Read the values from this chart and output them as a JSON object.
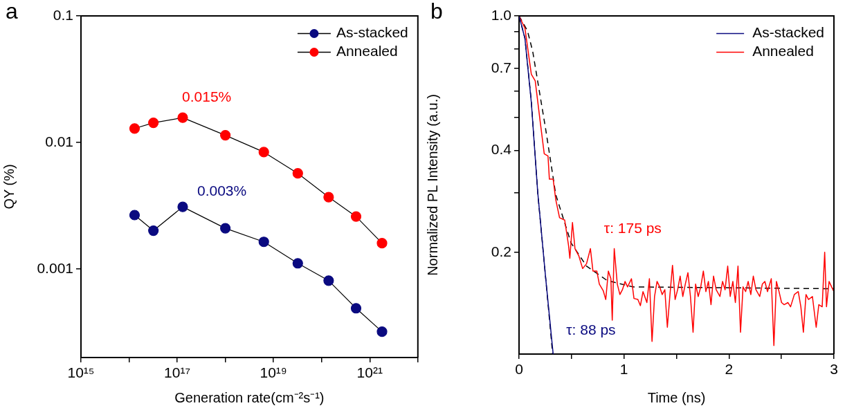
{
  "chart_data": [
    {
      "type": "line",
      "title": "a",
      "xlabel": "Generation rate(cm⁻²s⁻¹)",
      "ylabel": "QY (%)",
      "log": "xy",
      "marker": "circle",
      "legend": "top right",
      "xlim": [
        1000000000000000.0,
        1e+22
      ],
      "xticks": [
        {
          "value": 1000000000000000.0,
          "label": "10¹⁵"
        },
        {
          "value": 1e+16,
          "label": null
        },
        {
          "value": 1e+17,
          "label": "10¹⁷"
        },
        {
          "value": 1e+18,
          "label": null
        },
        {
          "value": 1e+19,
          "label": "10¹⁹"
        },
        {
          "value": 1e+20,
          "label": null
        },
        {
          "value": 1e+21,
          "label": "10²¹"
        },
        {
          "value": 1e+22,
          "label": null
        }
      ],
      "ylim": [
        0.0002,
        0.1
      ],
      "yticks": [
        0.001,
        0.01,
        0.1
      ],
      "x": [
        1.3e+16,
        3.2e+16,
        1.3e+17,
        1e+18,
        6.3e+18,
        3.2e+19,
        1.4e+20,
        5.2e+20,
        1.8e+21
      ],
      "series": [
        {
          "name": "As-stacked",
          "color": "#0a0a80",
          "values": [
            0.00267,
            0.00201,
            0.0031,
            0.0021,
            0.00164,
            0.00111,
            0.00081,
            0.00049,
            0.00032
          ]
        },
        {
          "name": "Annealed",
          "color": "#ff0000",
          "values": [
            0.0129,
            0.0143,
            0.0157,
            0.0114,
            0.0084,
            0.0057,
            0.0037,
            0.0026,
            0.0016
          ]
        }
      ],
      "annotations": [
        "0.003%",
        "0.015%"
      ]
    },
    {
      "type": "line",
      "title": "b",
      "xlabel": "Time (ns)",
      "ylabel": "Normalized PL Intensity (a.u.)",
      "log": "y",
      "marker": "none",
      "legend": "top right",
      "xlim": [
        0,
        3
      ],
      "xticks": [
        0,
        {
          "value": 0.5,
          "label": null
        },
        1,
        {
          "value": 1.5,
          "label": null
        },
        2,
        {
          "value": 2.5,
          "label": null
        },
        3
      ],
      "ylim": [
        0.1,
        1
      ],
      "yticks": [
        {
          "value": 1,
          "label": "1.0"
        },
        {
          "value": 0.9,
          "label": null
        },
        {
          "value": 0.8,
          "label": null
        },
        0.7,
        {
          "value": 0.6,
          "label": null
        },
        {
          "value": 0.5,
          "label": null
        },
        0.4,
        {
          "value": 0.3,
          "label": null
        },
        0.2
      ],
      "series": [
        {
          "name": "As-stacked",
          "color": "#0a0a80",
          "x": [
            0,
            0.056,
            0.117,
            0.178,
            0.252,
            0.325
          ],
          "values": [
            1,
            0.858,
            0.555,
            0.301,
            0.17,
            0.1
          ]
        },
        {
          "name": "Annealed",
          "color": "#ff0000",
          "x": [
            0,
            0.056,
            0.117,
            0.154,
            0.203,
            0.24,
            0.276,
            0.289,
            0.325,
            0.35,
            0.386,
            0.435,
            0.472,
            0.484,
            0.509,
            0.533,
            0.57,
            0.606,
            0.643,
            0.68,
            0.704,
            0.741,
            0.765,
            0.802,
            0.826,
            0.851,
            0.875,
            0.888,
            0.907,
            0.936,
            0.961,
            0.985,
            1.01,
            1.034,
            1.071,
            1.095,
            1.132,
            1.156,
            1.181,
            1.218,
            1.242,
            1.267,
            1.291,
            1.315,
            1.34,
            1.364,
            1.389,
            1.413,
            1.438,
            1.462,
            1.487,
            1.511,
            1.535,
            1.56,
            1.584,
            1.609,
            1.633,
            1.658,
            1.682,
            1.707,
            1.731,
            1.756,
            1.78,
            1.804,
            1.829,
            1.853,
            1.878,
            1.914,
            1.939,
            1.963,
            1.988,
            2.012,
            2.037,
            2.061,
            2.086,
            2.11,
            2.134,
            2.159,
            2.183,
            2.208,
            2.232,
            2.257,
            2.293,
            2.318,
            2.342,
            2.367,
            2.403,
            2.428,
            2.452,
            2.477,
            2.501,
            2.526,
            2.562,
            2.587,
            2.623,
            2.66,
            2.685,
            2.709,
            2.734,
            2.758,
            2.795,
            2.831,
            2.856,
            2.888,
            2.912,
            2.929,
            2.954,
            2.978,
            3
          ],
          "values": [
            1,
            0.92,
            0.672,
            0.643,
            0.483,
            0.391,
            0.385,
            0.329,
            0.329,
            0.286,
            0.253,
            0.249,
            0.209,
            0.192,
            0.245,
            0.205,
            0.195,
            0.179,
            0.185,
            0.205,
            0.176,
            0.176,
            0.161,
            0.154,
            0.145,
            0.176,
            0.167,
            0.126,
            0.205,
            0.161,
            0.15,
            0.155,
            0.164,
            0.158,
            0.167,
            0.146,
            0.145,
            0.139,
            0.153,
            0.142,
            0.167,
            0.109,
            0.148,
            0.164,
            0.158,
            0.15,
            0.155,
            0.12,
            0.15,
            0.183,
            0.145,
            0.155,
            0.17,
            0.148,
            0.161,
            0.174,
            0.148,
            0.116,
            0.161,
            0.148,
            0.158,
            0.176,
            0.153,
            0.164,
            0.14,
            0.17,
            0.155,
            0.148,
            0.164,
            0.155,
            0.182,
            0.148,
            0.164,
            0.142,
            0.182,
            0.116,
            0.158,
            0.153,
            0.164,
            0.15,
            0.17,
            0.155,
            0.148,
            0.161,
            0.164,
            0.153,
            0.167,
            0.106,
            0.164,
            0.153,
            0.142,
            0.14,
            0.142,
            0.138,
            0.15,
            0.153,
            0.138,
            0.116,
            0.15,
            0.145,
            0.148,
            0.12,
            0.14,
            0.138,
            0.2,
            0.138,
            0.164,
            0.158,
            0.153
          ]
        },
        {
          "color": "#000000",
          "line_style": "dashed",
          "x": [
            0,
            0.056,
            0.117,
            0.178,
            0.252,
            0.32
          ],
          "values": [
            1,
            0.86,
            0.56,
            0.3,
            0.17,
            0.1
          ]
        },
        {
          "color": "#000000",
          "line_style": "dashed",
          "x": [
            0,
            0.08,
            0.13,
            0.252,
            0.35,
            0.496,
            0.643,
            0.839,
            1.083,
            3
          ],
          "values": [
            1,
            0.904,
            0.786,
            0.466,
            0.296,
            0.213,
            0.182,
            0.165,
            0.158,
            0.156
          ]
        }
      ],
      "annotations": [
        "τ: 88 ps",
        "τ: 175 ps"
      ]
    }
  ]
}
